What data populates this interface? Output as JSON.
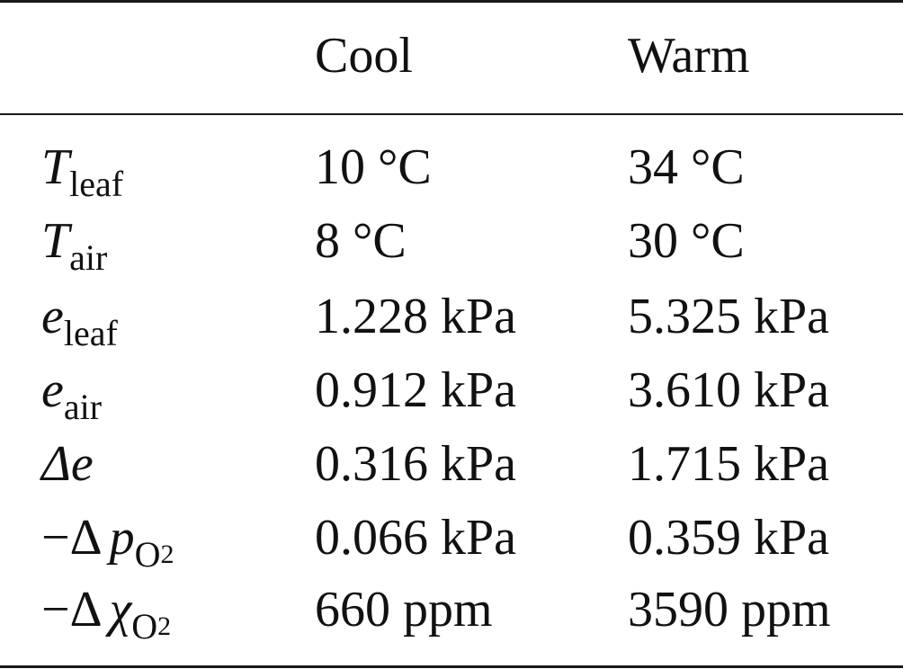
{
  "table": {
    "headers": [
      "Cool",
      "Warm"
    ],
    "rows": [
      {
        "symbol": "T",
        "subscript": "leaf",
        "cool": "10 °C",
        "warm": "34 °C"
      },
      {
        "symbol": "T",
        "subscript": "air",
        "cool": "8 °C",
        "warm": "30 °C"
      },
      {
        "symbol": "e",
        "subscript": "leaf",
        "cool": "1.228 kPa",
        "warm": "5.325 kPa"
      },
      {
        "symbol": "e",
        "subscript": "air",
        "cool": "0.912 kPa",
        "warm": "3.610 kPa"
      },
      {
        "symbol": "Δe",
        "cool": "0.316 kPa",
        "warm": "1.715 kPa"
      },
      {
        "prefix": "−Δ",
        "symbol": "p",
        "subscript": "O",
        "subsubscript": "2",
        "cool": "0.066 kPa",
        "warm": "0.359 kPa"
      },
      {
        "prefix": "−Δ",
        "symbol": "χ",
        "subscript": "O",
        "subsubscript": "2",
        "cool": "660 ppm",
        "warm": "3590 ppm"
      }
    ]
  }
}
